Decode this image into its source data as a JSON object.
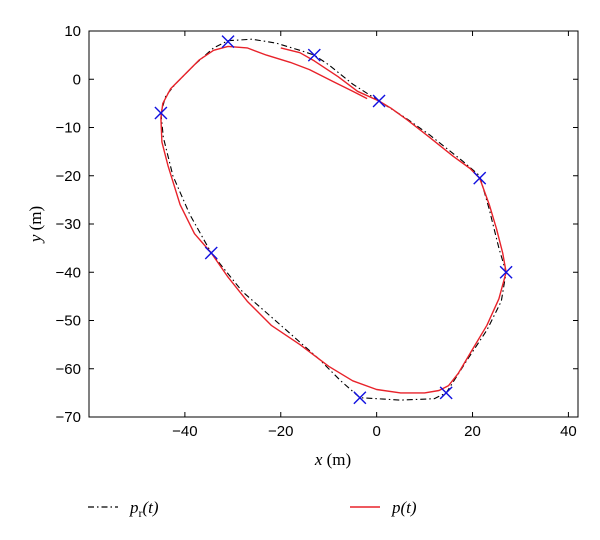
{
  "chart_data": {
    "type": "line",
    "title": "",
    "xlabel": {
      "var": "x",
      "unit": " (m)"
    },
    "ylabel": {
      "var": "y",
      "unit": " (m)"
    },
    "xlim": [
      -60,
      42
    ],
    "ylim": [
      -70,
      10
    ],
    "xticks": [
      -40,
      -20,
      0,
      20,
      40
    ],
    "yticks": [
      10,
      0,
      -10,
      -20,
      -30,
      -40,
      -50,
      -60,
      -70
    ],
    "grid": false,
    "legend": {
      "placement": "bottom",
      "entries": [
        {
          "series": "reference",
          "base": "p",
          "sub": "r",
          "suffix": "(t)"
        },
        {
          "series": "actual",
          "base": "p",
          "sub": "",
          "suffix": "(t)"
        }
      ]
    },
    "series": [
      {
        "key": "reference",
        "color": "#000000",
        "style": "dashdot",
        "points": [
          [
            0.5,
            -4.5
          ],
          [
            -5,
            -1
          ],
          [
            -10,
            3
          ],
          [
            -13,
            5
          ],
          [
            -16,
            6
          ],
          [
            -21,
            7.5
          ],
          [
            -26,
            8.3
          ],
          [
            -31,
            8
          ],
          [
            -34,
            6.5
          ],
          [
            -38,
            3
          ],
          [
            -42,
            -1
          ],
          [
            -44,
            -3.5
          ],
          [
            -45,
            -7
          ],
          [
            -44.5,
            -12
          ],
          [
            -42.5,
            -20
          ],
          [
            -39,
            -28
          ],
          [
            -34.5,
            -36
          ],
          [
            -28,
            -44
          ],
          [
            -20,
            -51
          ],
          [
            -12,
            -58
          ],
          [
            -7.5,
            -62.5
          ],
          [
            -3.5,
            -66
          ],
          [
            5,
            -66.5
          ],
          [
            12,
            -66.2
          ],
          [
            14.5,
            -65
          ],
          [
            19,
            -58
          ],
          [
            23,
            -52
          ],
          [
            26,
            -46
          ],
          [
            27,
            -40
          ],
          [
            25.5,
            -35
          ],
          [
            23.5,
            -27
          ],
          [
            21.5,
            -20
          ],
          [
            18,
            -17
          ],
          [
            11,
            -11.5
          ],
          [
            6,
            -8
          ],
          [
            0.5,
            -4.5
          ]
        ]
      },
      {
        "key": "actual",
        "color": "#e8222a",
        "style": "solid",
        "points": [
          [
            -2,
            -4
          ],
          [
            -5,
            -2.5
          ],
          [
            -9,
            -0.5
          ],
          [
            -14,
            2
          ],
          [
            -18,
            3.5
          ],
          [
            -23,
            5
          ],
          [
            -27,
            6.5
          ],
          [
            -31,
            6.8
          ],
          [
            -34,
            6
          ],
          [
            -37,
            4
          ],
          [
            -40,
            1
          ],
          [
            -43,
            -2
          ],
          [
            -44.6,
            -5
          ],
          [
            -45,
            -8
          ],
          [
            -44.8,
            -13
          ],
          [
            -43.5,
            -18
          ],
          [
            -41,
            -26
          ],
          [
            -38,
            -32
          ],
          [
            -34.5,
            -36
          ],
          [
            -31,
            -41
          ],
          [
            -27,
            -46
          ],
          [
            -22,
            -51
          ],
          [
            -16,
            -55
          ],
          [
            -10,
            -59.5
          ],
          [
            -5,
            -62.5
          ],
          [
            0,
            -64.3
          ],
          [
            5,
            -65
          ],
          [
            10,
            -65
          ],
          [
            13,
            -64.5
          ],
          [
            15,
            -63.5
          ],
          [
            17,
            -61
          ],
          [
            20,
            -56
          ],
          [
            23,
            -51
          ],
          [
            25.5,
            -45.5
          ],
          [
            27,
            -40
          ],
          [
            26.3,
            -36
          ],
          [
            25,
            -31
          ],
          [
            23.5,
            -26
          ],
          [
            21.5,
            -20.5
          ],
          [
            19.5,
            -18.5
          ],
          [
            16,
            -16
          ],
          [
            11,
            -12
          ],
          [
            6.5,
            -8.5
          ],
          [
            3,
            -6
          ],
          [
            0.5,
            -4.5
          ],
          [
            -4,
            -2.5
          ],
          [
            -8,
            0.5
          ],
          [
            -13,
            3.8
          ],
          [
            -16,
            5.5
          ],
          [
            -20,
            6.5
          ]
        ]
      },
      {
        "key": "waypoints",
        "color": "#1010e0",
        "style": "marker-x",
        "points": [
          [
            -31,
            7.8
          ],
          [
            -13,
            5
          ],
          [
            0.5,
            -4.5
          ],
          [
            21.5,
            -20.5
          ],
          [
            27,
            -40
          ],
          [
            14.5,
            -65
          ],
          [
            -3.5,
            -66
          ],
          [
            -34.5,
            -36
          ],
          [
            -45,
            -7
          ]
        ]
      }
    ]
  }
}
